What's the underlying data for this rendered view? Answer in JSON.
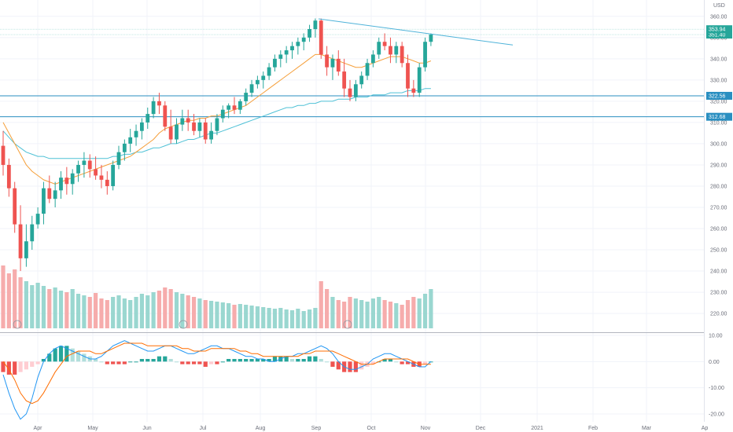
{
  "chart_data": [
    {
      "type": "candlestick",
      "currency": "USD",
      "x_ticks": [
        "Apr",
        "May",
        "Jun",
        "Jul",
        "Aug",
        "Sep",
        "Oct",
        "Nov",
        "Dec",
        "2021",
        "Feb",
        "Mar",
        "Ap"
      ],
      "y_ticks": [
        "360.00",
        "350.00",
        "340.00",
        "330.00",
        "320.00",
        "310.00",
        "300.00",
        "290.00",
        "280.00",
        "270.00",
        "260.00",
        "250.00",
        "240.00",
        "230.00",
        "220.00"
      ],
      "ylim": [
        213,
        364
      ],
      "price_labels": [
        {
          "text": "351.40",
          "color": "#26a69a"
        },
        {
          "text": "353.94",
          "color": "#26a69a"
        },
        {
          "text": "322.56",
          "color": "#2a8fc1"
        },
        {
          "text": "312.68",
          "color": "#2a8fc1"
        }
      ],
      "horizontal_levels": [
        {
          "value": 322.56,
          "color": "#2a8fc1"
        },
        {
          "value": 312.68,
          "color": "#2a8fc1"
        }
      ],
      "trendline": {
        "from": [
          "Sep 2",
          358.8
        ],
        "to": [
          "Nov 30",
          346.5
        ],
        "color": "#4fb3d9"
      },
      "series": [
        {
          "name": "ohlc",
          "values": [
            [
              299,
              306,
              285,
              290
            ],
            [
              290,
              293,
              275,
              279
            ],
            [
              279,
              282,
              258,
              262
            ],
            [
              262,
              271,
              240,
              246
            ],
            [
              246,
              262,
              242,
              254
            ],
            [
              254,
              266,
              250,
              262
            ],
            [
              262,
              270,
              260,
              267
            ],
            [
              267,
              282,
              262,
              279
            ],
            [
              279,
              285,
              272,
              274
            ],
            [
              274,
              282,
              270,
              278
            ],
            [
              278,
              287,
              274,
              284
            ],
            [
              284,
              289,
              276,
              281
            ],
            [
              281,
              288,
              276,
              286
            ],
            [
              286,
              292,
              282,
              290
            ],
            [
              290,
              296,
              284,
              292
            ],
            [
              292,
              295,
              284,
              288
            ],
            [
              288,
              294,
              283,
              285
            ],
            [
              285,
              290,
              279,
              283
            ],
            [
              283,
              287,
              276,
              280
            ],
            [
              280,
              292,
              278,
              290
            ],
            [
              290,
              299,
              288,
              296
            ],
            [
              296,
              302,
              292,
              300
            ],
            [
              300,
              307,
              296,
              303
            ],
            [
              303,
              309,
              299,
              306
            ],
            [
              306,
              312,
              302,
              310
            ],
            [
              310,
              317,
              307,
              314
            ],
            [
              314,
              322,
              312,
              320
            ],
            [
              320,
              324,
              314,
              318
            ],
            [
              318,
              320,
              306,
              308
            ],
            [
              308,
              316,
              300,
              302
            ],
            [
              302,
              312,
              300,
              309
            ],
            [
              309,
              316,
              306,
              312
            ],
            [
              312,
              316,
              306,
              310
            ],
            [
              310,
              314,
              304,
              306
            ],
            [
              306,
              312,
              303,
              310
            ],
            [
              310,
              312,
              300,
              302
            ],
            [
              302,
              310,
              300,
              306
            ],
            [
              306,
              314,
              304,
              312
            ],
            [
              312,
              318,
              310,
              316
            ],
            [
              316,
              319,
              312,
              318
            ],
            [
              318,
              322,
              314,
              316
            ],
            [
              316,
              321,
              314,
              320
            ],
            [
              320,
              326,
              318,
              324
            ],
            [
              324,
              330,
              322,
              328
            ],
            [
              328,
              332,
              326,
              330
            ],
            [
              330,
              334,
              326,
              332
            ],
            [
              332,
              338,
              330,
              336
            ],
            [
              336,
              342,
              334,
              340
            ],
            [
              340,
              344,
              336,
              342
            ],
            [
              342,
              346,
              338,
              344
            ],
            [
              344,
              348,
              340,
              346
            ],
            [
              346,
              350,
              342,
              348
            ],
            [
              348,
              352,
              344,
              350
            ],
            [
              350,
              356,
              348,
              354
            ],
            [
              354,
              359,
              350,
              358
            ],
            [
              358,
              359,
              340,
              342
            ],
            [
              342,
              346,
              332,
              336
            ],
            [
              336,
              342,
              330,
              340
            ],
            [
              340,
              344,
              332,
              334
            ],
            [
              334,
              340,
              322,
              326
            ],
            [
              326,
              330,
              320,
              322
            ],
            [
              322,
              330,
              320,
              328
            ],
            [
              328,
              334,
              326,
              332
            ],
            [
              332,
              340,
              330,
              338
            ],
            [
              338,
              344,
              336,
              342
            ],
            [
              342,
              350,
              340,
              348
            ],
            [
              348,
              352,
              344,
              346
            ],
            [
              346,
              350,
              338,
              342
            ],
            [
              342,
              348,
              338,
              346
            ],
            [
              346,
              348,
              336,
              338
            ],
            [
              338,
              342,
              322,
              326
            ],
            [
              326,
              330,
              322,
              324
            ],
            [
              324,
              338,
              322,
              336
            ],
            [
              336,
              350,
              334,
              348
            ],
            [
              348,
              352,
              346,
              351.4
            ]
          ]
        },
        {
          "name": "ma_short",
          "values": [
            310,
            305,
            300,
            295,
            290,
            287,
            285,
            283,
            282,
            281,
            282,
            283,
            284,
            285,
            286,
            287,
            288,
            289,
            290,
            291,
            292,
            293,
            294,
            296,
            298,
            300,
            302,
            305,
            307,
            308,
            309,
            310,
            311,
            311,
            312,
            312,
            313,
            313,
            314,
            315,
            316,
            317,
            318,
            320,
            322,
            324,
            326,
            328,
            330,
            332,
            334,
            336,
            338,
            340,
            342,
            342,
            341,
            340,
            339,
            338,
            337,
            336,
            336,
            337,
            338,
            339,
            340,
            341,
            341,
            341,
            340,
            339,
            338,
            338,
            339
          ]
        },
        {
          "name": "ma_long",
          "values": [
            306,
            303,
            300,
            298,
            296,
            295,
            294,
            294,
            293,
            293,
            293,
            293,
            293,
            293,
            293,
            293,
            293,
            293,
            293,
            294,
            294,
            295,
            295,
            296,
            296,
            297,
            298,
            298,
            299,
            300,
            300,
            301,
            302,
            302,
            303,
            304,
            305,
            305,
            306,
            307,
            308,
            309,
            310,
            311,
            312,
            313,
            314,
            315,
            316,
            317,
            317,
            318,
            318,
            319,
            319,
            320,
            320,
            320,
            321,
            321,
            321,
            322,
            322,
            322,
            323,
            323,
            323,
            324,
            324,
            324,
            325,
            325,
            325,
            326,
            326
          ]
        },
        {
          "name": "volume",
          "values": [
            80,
            70,
            75,
            65,
            60,
            55,
            58,
            54,
            50,
            52,
            48,
            46,
            50,
            44,
            42,
            40,
            45,
            38,
            36,
            40,
            42,
            38,
            36,
            40,
            44,
            42,
            46,
            48,
            52,
            50,
            46,
            44,
            42,
            40,
            38,
            36,
            35,
            34,
            33,
            32,
            30,
            31,
            30,
            29,
            28,
            27,
            26,
            25,
            26,
            24,
            23,
            25,
            22,
            24,
            26,
            60,
            50,
            40,
            36,
            34,
            40,
            38,
            36,
            34,
            38,
            40,
            36,
            34,
            32,
            30,
            36,
            40,
            38,
            44,
            50
          ]
        },
        {
          "name": "macd_hist",
          "values": [
            -4,
            -5,
            -5,
            -4,
            -3,
            -2,
            -1,
            1,
            3,
            5,
            6,
            6,
            5,
            4,
            3,
            2,
            1,
            0,
            -1,
            -1,
            -1,
            -1,
            0,
            0,
            1,
            1,
            1,
            2,
            2,
            1,
            0,
            -1,
            -1,
            -1,
            -1,
            -2,
            -1,
            -1,
            0,
            1,
            1,
            1,
            1,
            1,
            1,
            1,
            1,
            2,
            2,
            2,
            1,
            1,
            1,
            2,
            2,
            1,
            0,
            -2,
            -3,
            -4,
            -4,
            -4,
            -3,
            -2,
            -1,
            0,
            1,
            1,
            0,
            -1,
            -1,
            -2,
            -2,
            -1,
            0
          ]
        },
        {
          "name": "macd_line",
          "values": [
            -5,
            -12,
            -18,
            -22,
            -20,
            -14,
            -6,
            0,
            3,
            5,
            6,
            5,
            4,
            3,
            2,
            1,
            1,
            2,
            4,
            6,
            7,
            8,
            7,
            6,
            5,
            4,
            4,
            5,
            6,
            6,
            5,
            4,
            3,
            3,
            4,
            5,
            6,
            6,
            5,
            5,
            4,
            3,
            2,
            2,
            1,
            1,
            0,
            0,
            1,
            2,
            2,
            3,
            3,
            4,
            5,
            6,
            5,
            3,
            0,
            -2,
            -3,
            -3,
            -2,
            -1,
            1,
            2,
            3,
            3,
            2,
            1,
            0,
            -1,
            -2,
            -2,
            0
          ]
        },
        {
          "name": "signal_line",
          "values": [
            0,
            -3,
            -7,
            -12,
            -15,
            -16,
            -15,
            -12,
            -8,
            -4,
            -1,
            2,
            3,
            4,
            4,
            4,
            3,
            3,
            4,
            5,
            6,
            7,
            7,
            7,
            7,
            6,
            6,
            6,
            6,
            6,
            6,
            5,
            5,
            4,
            4,
            4,
            5,
            5,
            5,
            5,
            5,
            4,
            4,
            3,
            3,
            2,
            2,
            2,
            2,
            2,
            2,
            2,
            3,
            3,
            4,
            4,
            4,
            4,
            3,
            2,
            1,
            0,
            -1,
            -1,
            -1,
            0,
            1,
            1,
            1,
            1,
            1,
            0,
            -1,
            -1,
            -1
          ]
        }
      ]
    },
    {
      "type": "bar",
      "name": "MACD",
      "y_ticks": [
        "10.00",
        "0.00",
        "-10.00",
        "-20.00"
      ],
      "ylim": [
        -23,
        10
      ]
    }
  ]
}
